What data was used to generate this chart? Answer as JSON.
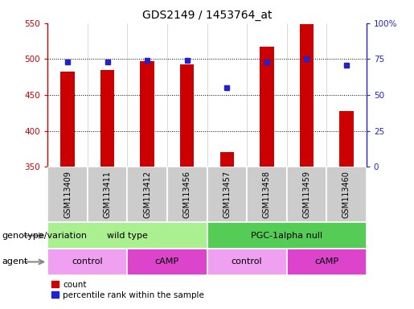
{
  "title": "GDS2149 / 1453764_at",
  "samples": [
    "GSM113409",
    "GSM113411",
    "GSM113412",
    "GSM113456",
    "GSM113457",
    "GSM113458",
    "GSM113459",
    "GSM113460"
  ],
  "counts": [
    483,
    485,
    497,
    493,
    371,
    517,
    549,
    428
  ],
  "percentile_ranks": [
    73,
    73,
    74,
    74,
    55,
    73,
    75,
    71
  ],
  "ylim_left": [
    350,
    550
  ],
  "ylim_right": [
    0,
    100
  ],
  "yticks_left": [
    350,
    400,
    450,
    500,
    550
  ],
  "yticks_right": [
    0,
    25,
    50,
    75,
    100
  ],
  "ytick_right_labels": [
    "0",
    "25",
    "50",
    "75",
    "100%"
  ],
  "grid_lines": [
    400,
    450,
    500
  ],
  "bar_color": "#cc0000",
  "dot_color": "#2222cc",
  "bar_width": 0.35,
  "dot_size": 5,
  "genotype_groups": [
    {
      "label": "wild type",
      "start": 0,
      "end": 4,
      "color": "#aaf090"
    },
    {
      "label": "PGC-1alpha null",
      "start": 4,
      "end": 8,
      "color": "#55cc55"
    }
  ],
  "agent_groups": [
    {
      "label": "control",
      "start": 0,
      "end": 2,
      "color": "#f0a0f0"
    },
    {
      "label": "cAMP",
      "start": 2,
      "end": 4,
      "color": "#dd44cc"
    },
    {
      "label": "control",
      "start": 4,
      "end": 6,
      "color": "#f0a0f0"
    },
    {
      "label": "cAMP",
      "start": 6,
      "end": 8,
      "color": "#dd44cc"
    }
  ],
  "sample_bg_color": "#cccccc",
  "left_axis_color": "#cc0000",
  "right_axis_color": "#2222cc",
  "title_fontsize": 10,
  "tick_fontsize": 7.5,
  "label_fontsize": 8,
  "sample_fontsize": 7
}
